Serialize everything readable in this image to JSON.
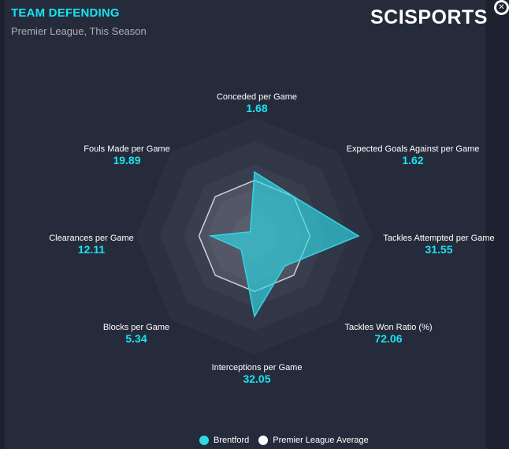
{
  "header": {
    "title": "TEAM DEFENDING",
    "subtitle": "Premier League, This Season",
    "logo": "SCISPORTS"
  },
  "colors": {
    "accent": "#19e3f0",
    "team": "#2fd8e6",
    "average": "#ffffff",
    "background": "#262b3b"
  },
  "icons": {
    "close": "close-icon"
  },
  "chart_data": {
    "type": "radar",
    "axes": [
      {
        "label": "Conceded per Game",
        "value": "1.68",
        "team_pct": 0.54,
        "avg_pct": 0.47
      },
      {
        "label": "Expected Goals Against per Game",
        "value": "1.62",
        "team_pct": 0.47,
        "avg_pct": 0.47
      },
      {
        "label": "Tackles Attempted per Game",
        "value": "31.55",
        "team_pct": 0.88,
        "avg_pct": 0.47
      },
      {
        "label": "Tackles Won Ratio (%)",
        "value": "72.06",
        "team_pct": 0.36,
        "avg_pct": 0.47
      },
      {
        "label": "Interceptions per Game",
        "value": "32.05",
        "team_pct": 0.68,
        "avg_pct": 0.47
      },
      {
        "label": "Blocks per Game",
        "value": "5.34",
        "team_pct": 0.16,
        "avg_pct": 0.47
      },
      {
        "label": "Clearances per Game",
        "value": "12.11",
        "team_pct": 0.37,
        "avg_pct": 0.47
      },
      {
        "label": "Fouls Made per Game",
        "value": "19.89",
        "team_pct": 0.05,
        "avg_pct": 0.47
      }
    ],
    "legend": [
      {
        "name": "Brentford",
        "color": "#2fd8e6"
      },
      {
        "name": "Premier League Average",
        "color": "#ffffff"
      }
    ],
    "legend_position": "bottom"
  }
}
